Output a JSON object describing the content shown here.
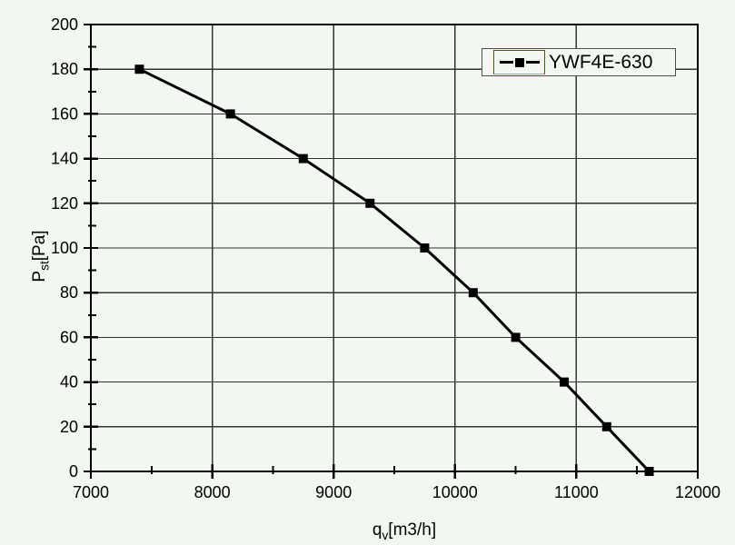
{
  "chart_data": {
    "type": "line",
    "title": "",
    "series": [
      {
        "name": "YWF4E-630",
        "x": [
          7400,
          8150,
          8750,
          9300,
          9750,
          10150,
          10500,
          10900,
          11250,
          11600
        ],
        "y": [
          180,
          160,
          140,
          120,
          100,
          80,
          60,
          40,
          20,
          0
        ],
        "color": "#000000",
        "marker": "square",
        "line_style": "solid"
      }
    ],
    "xlabel": "qv[m3/h]",
    "ylabel": "Pst[Pa]",
    "xlabel_parts": {
      "pre": "q",
      "sub": "v",
      "post": "[m3/h]"
    },
    "ylabel_parts": {
      "pre": "P",
      "sub": "st",
      "post": "[Pa]"
    },
    "xlim": [
      7000,
      12000
    ],
    "ylim": [
      0,
      200
    ],
    "x_ticks": [
      7000,
      8000,
      9000,
      10000,
      11000,
      12000
    ],
    "y_ticks": [
      0,
      20,
      40,
      60,
      80,
      100,
      120,
      140,
      160,
      180,
      200
    ],
    "x_minor_ticks": [
      7500,
      8500,
      9500,
      10500,
      11500
    ],
    "y_minor_ticks": [
      10,
      30,
      50,
      70,
      90,
      110,
      130,
      150,
      170,
      190
    ],
    "grid": true,
    "legend_position": "top-right"
  },
  "legend": {
    "label": "YWF4E-630",
    "selection_box_color": "#ff0000",
    "selection_underline_color": "#00e5ff"
  },
  "colors": {
    "background": "#f2f7f1",
    "grid": "#333333",
    "axis": "#000000",
    "text": "#000000",
    "series": "#000000"
  }
}
